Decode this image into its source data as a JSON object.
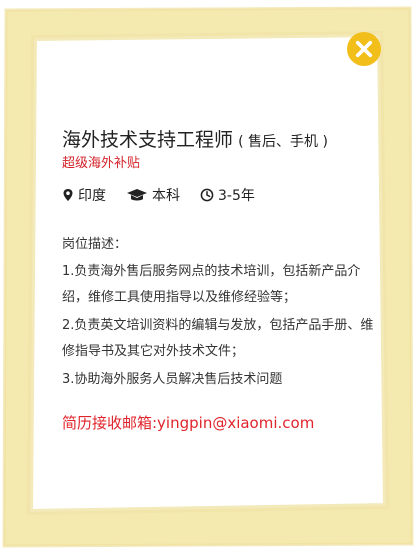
{
  "brand": {
    "accent": "#f2be1a",
    "text_red": "#d3232a",
    "frame_color": "#f3e7a6"
  },
  "badge": {
    "icon": "x-mark-icon"
  },
  "job": {
    "title": "海外技术支持工程师",
    "title_paren": "( 售后、手机 )",
    "subtitle": "超级海外补贴",
    "location": "印度",
    "education": "本科",
    "experience": "3-5年",
    "icons": {
      "location": "map-pin-icon",
      "education": "graduation-cap-icon",
      "experience": "clock-icon"
    }
  },
  "description": {
    "label": "岗位描述：",
    "duties": [
      "1.负责海外售后服务网点的技术培训，包括新产品介绍，维修工具使用指导以及维修经验等；",
      "2.负责英文培训资料的编辑与发放，包括产品手册、维修指导书及其它对外技术文件；",
      "3.协助海外服务人员解决售后技术问题"
    ]
  },
  "contact": {
    "text": "简历接收邮箱:yingpin@xiaomi.com"
  }
}
